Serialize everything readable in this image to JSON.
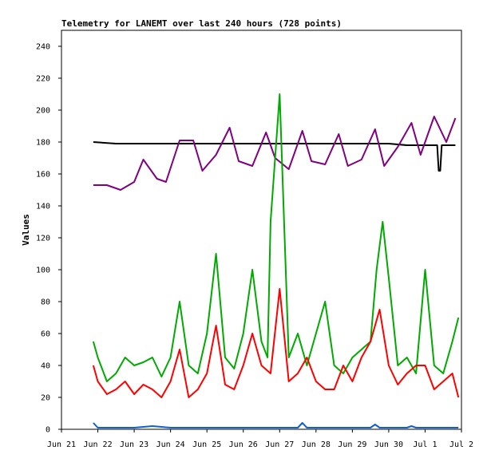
{
  "chart_data": {
    "type": "line",
    "title": "Telemetry for LANEMT over last 240 hours (728 points)",
    "xlabel": "",
    "ylabel": "Values",
    "xlim": [
      "2024-06-21",
      "2024-07-02"
    ],
    "ylim": [
      0,
      250
    ],
    "x_tick_labels": [
      "Jun 21",
      "Jun 22",
      "Jun 23",
      "Jun 24",
      "Jun 25",
      "Jun 26",
      "Jun 27",
      "Jun 28",
      "Jun 29",
      "Jun 30",
      "Jul 1",
      "Jul 2"
    ],
    "x_tick_values": [
      "2024-06-21",
      "2024-06-22",
      "2024-06-23",
      "2024-06-24",
      "2024-06-25",
      "2024-06-26",
      "2024-06-27",
      "2024-06-28",
      "2024-06-29",
      "2024-06-30",
      "2024-07-01",
      "2024-07-02"
    ],
    "y_ticks": [
      0,
      20,
      40,
      60,
      80,
      100,
      120,
      140,
      160,
      180,
      200,
      220,
      240
    ],
    "grid": false,
    "series": [
      {
        "color": "#000000",
        "x": [
          "2024-06-21T21:00",
          "2024-06-22T12:00",
          "2024-06-23T00:00",
          "2024-06-24T00:00",
          "2024-06-25T00:00",
          "2024-06-26T00:00",
          "2024-06-26T12:00",
          "2024-06-27T00:00",
          "2024-06-28T00:00",
          "2024-06-29T00:00",
          "2024-06-30T00:00",
          "2024-06-30T12:00",
          "2024-07-01T00:00",
          "2024-07-01T08:00",
          "2024-07-01T09:00",
          "2024-07-01T10:00",
          "2024-07-01T11:00",
          "2024-07-01T12:00",
          "2024-07-01T20:00"
        ],
        "y": [
          180,
          179,
          179,
          179,
          179,
          179,
          179,
          179,
          179,
          179,
          179,
          178,
          178,
          178,
          162,
          162,
          178,
          178,
          178
        ]
      },
      {
        "color": "#800080",
        "x": [
          "2024-06-21T21:00",
          "2024-06-22T06:00",
          "2024-06-22T15:00",
          "2024-06-23T00:00",
          "2024-06-23T06:00",
          "2024-06-23T15:00",
          "2024-06-23T21:00",
          "2024-06-24T06:00",
          "2024-06-24T15:00",
          "2024-06-24T21:00",
          "2024-06-25T06:00",
          "2024-06-25T15:00",
          "2024-06-25T21:00",
          "2024-06-26T06:00",
          "2024-06-26T15:00",
          "2024-06-26T21:00",
          "2024-06-27T06:00",
          "2024-06-27T15:00",
          "2024-06-27T21:00",
          "2024-06-28T06:00",
          "2024-06-28T15:00",
          "2024-06-28T21:00",
          "2024-06-29T06:00",
          "2024-06-29T15:00",
          "2024-06-29T21:00",
          "2024-06-30T06:00",
          "2024-06-30T15:00",
          "2024-06-30T21:00",
          "2024-07-01T06:00",
          "2024-07-01T14:00",
          "2024-07-01T20:00"
        ],
        "y": [
          153,
          153,
          150,
          155,
          169,
          157,
          155,
          181,
          181,
          162,
          172,
          189,
          168,
          165,
          186,
          170,
          163,
          187,
          168,
          166,
          185,
          165,
          169,
          188,
          165,
          177,
          192,
          172,
          196,
          180,
          195
        ]
      },
      {
        "color": "#00aa00",
        "x": [
          "2024-06-21T21:00",
          "2024-06-22T00:00",
          "2024-06-22T06:00",
          "2024-06-22T12:00",
          "2024-06-22T18:00",
          "2024-06-23T00:00",
          "2024-06-23T06:00",
          "2024-06-23T12:00",
          "2024-06-23T18:00",
          "2024-06-24T00:00",
          "2024-06-24T06:00",
          "2024-06-24T12:00",
          "2024-06-24T18:00",
          "2024-06-25T00:00",
          "2024-06-25T06:00",
          "2024-06-25T12:00",
          "2024-06-25T18:00",
          "2024-06-26T00:00",
          "2024-06-26T06:00",
          "2024-06-26T12:00",
          "2024-06-26T16:00",
          "2024-06-26T18:00",
          "2024-06-27T00:00",
          "2024-06-27T06:00",
          "2024-06-27T12:00",
          "2024-06-27T18:00",
          "2024-06-28T00:00",
          "2024-06-28T06:00",
          "2024-06-28T12:00",
          "2024-06-28T18:00",
          "2024-06-29T00:00",
          "2024-06-29T06:00",
          "2024-06-29T12:00",
          "2024-06-29T16:00",
          "2024-06-29T20:00",
          "2024-06-30T00:00",
          "2024-06-30T06:00",
          "2024-06-30T12:00",
          "2024-06-30T18:00",
          "2024-07-01T00:00",
          "2024-07-01T06:00",
          "2024-07-01T12:00",
          "2024-07-01T18:00",
          "2024-07-01T22:00"
        ],
        "y": [
          55,
          45,
          30,
          35,
          45,
          40,
          42,
          45,
          33,
          45,
          80,
          40,
          35,
          60,
          110,
          45,
          38,
          60,
          100,
          55,
          45,
          130,
          210,
          45,
          60,
          40,
          60,
          80,
          40,
          35,
          45,
          50,
          55,
          100,
          130,
          95,
          40,
          45,
          35,
          100,
          40,
          35,
          55,
          70
        ]
      },
      {
        "color": "#ff0000",
        "x": [
          "2024-06-21T21:00",
          "2024-06-22T00:00",
          "2024-06-22T06:00",
          "2024-06-22T12:00",
          "2024-06-22T18:00",
          "2024-06-23T00:00",
          "2024-06-23T06:00",
          "2024-06-23T12:00",
          "2024-06-23T18:00",
          "2024-06-24T00:00",
          "2024-06-24T06:00",
          "2024-06-24T12:00",
          "2024-06-24T18:00",
          "2024-06-25T00:00",
          "2024-06-25T06:00",
          "2024-06-25T12:00",
          "2024-06-25T18:00",
          "2024-06-26T00:00",
          "2024-06-26T06:00",
          "2024-06-26T12:00",
          "2024-06-26T18:00",
          "2024-06-27T00:00",
          "2024-06-27T06:00",
          "2024-06-27T12:00",
          "2024-06-27T18:00",
          "2024-06-28T00:00",
          "2024-06-28T06:00",
          "2024-06-28T12:00",
          "2024-06-28T18:00",
          "2024-06-29T00:00",
          "2024-06-29T06:00",
          "2024-06-29T12:00",
          "2024-06-29T18:00",
          "2024-06-30T00:00",
          "2024-06-30T06:00",
          "2024-06-30T12:00",
          "2024-06-30T18:00",
          "2024-07-01T00:00",
          "2024-07-01T06:00",
          "2024-07-01T12:00",
          "2024-07-01T18:00",
          "2024-07-01T22:00"
        ],
        "y": [
          40,
          30,
          22,
          25,
          30,
          22,
          28,
          25,
          20,
          30,
          50,
          20,
          25,
          35,
          65,
          28,
          25,
          40,
          60,
          40,
          35,
          88,
          30,
          35,
          45,
          30,
          25,
          25,
          40,
          30,
          45,
          55,
          75,
          40,
          28,
          35,
          40,
          40,
          25,
          30,
          35,
          20
        ]
      },
      {
        "color": "#1060d0",
        "x": [
          "2024-06-21T21:00",
          "2024-06-22T00:00",
          "2024-06-22T12:00",
          "2024-06-23T00:00",
          "2024-06-23T12:00",
          "2024-06-24T00:00",
          "2024-06-25T00:00",
          "2024-06-26T00:00",
          "2024-06-27T00:00",
          "2024-06-27T12:00",
          "2024-06-27T15:00",
          "2024-06-27T18:00",
          "2024-06-28T00:00",
          "2024-06-29T00:00",
          "2024-06-29T12:00",
          "2024-06-29T15:00",
          "2024-06-29T18:00",
          "2024-06-30T00:00",
          "2024-06-30T12:00",
          "2024-06-30T15:00",
          "2024-06-30T18:00",
          "2024-07-01T00:00",
          "2024-07-01T22:00"
        ],
        "y": [
          4,
          1,
          1,
          1,
          2,
          1,
          1,
          1,
          1,
          1,
          4,
          1,
          1,
          1,
          1,
          3,
          1,
          1,
          1,
          2,
          1,
          1,
          1
        ]
      }
    ]
  }
}
